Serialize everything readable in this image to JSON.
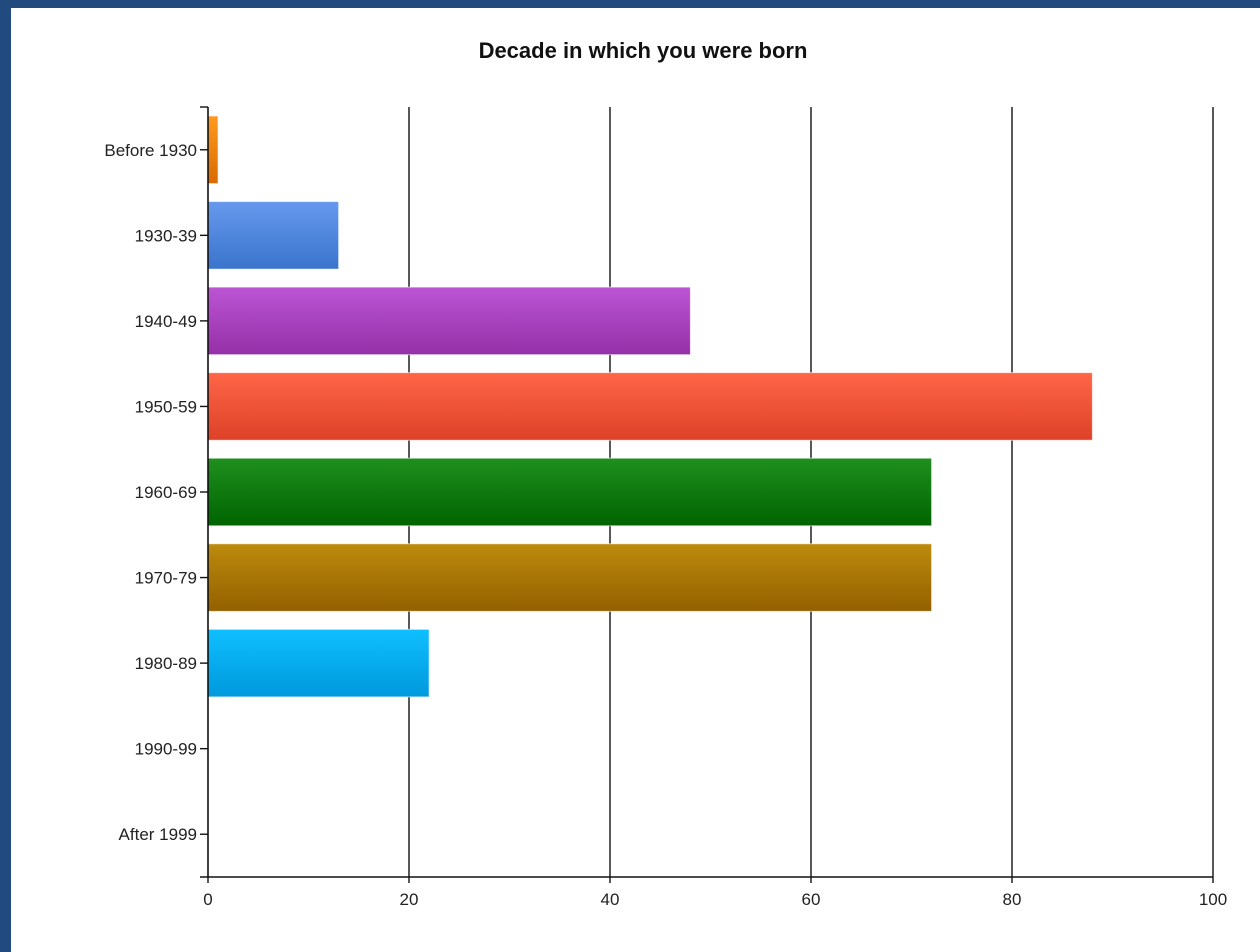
{
  "chart_data": {
    "type": "bar",
    "orientation": "horizontal",
    "title": "Decade in which you were born",
    "xlabel": "",
    "ylabel": "",
    "xlim": [
      0,
      100
    ],
    "x_ticks": [
      0,
      20,
      40,
      60,
      80,
      100
    ],
    "grid": "vertical",
    "legend": "none",
    "categories": [
      "Before 1930",
      "1930-39",
      "1940-49",
      "1950-59",
      "1960-69",
      "1970-79",
      "1980-89",
      "1990-99",
      "After 1999"
    ],
    "values": [
      1,
      13,
      48,
      88,
      72,
      72,
      22,
      0,
      0
    ],
    "colors": [
      [
        "#ff9a1e",
        "#d96a00"
      ],
      [
        "#6699ee",
        "#3a74cc"
      ],
      [
        "#bb55d4",
        "#9530a8"
      ],
      [
        "#ff6648",
        "#dd4128"
      ],
      [
        "#1f8f1f",
        "#006400"
      ],
      [
        "#bd8b0d",
        "#936000"
      ],
      [
        "#0fbfff",
        "#0099dd"
      ],
      [
        "#cccccc",
        "#999999"
      ],
      [
        "#cccccc",
        "#999999"
      ]
    ]
  }
}
